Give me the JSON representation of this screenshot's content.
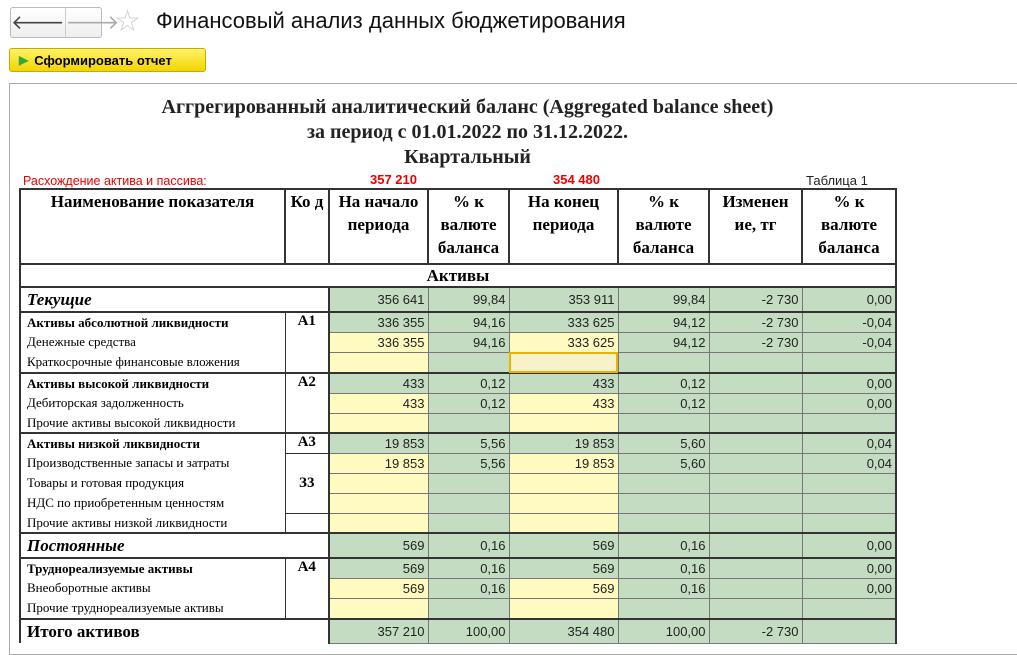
{
  "window": {
    "title": "Финансовый анализ данных бюджетирования",
    "back_icon": "arrow-left-icon",
    "forward_icon": "arrow-right-icon",
    "favorite_icon": "star-icon"
  },
  "toolbar": {
    "run_label": "Сформировать отчет"
  },
  "report": {
    "title1": "Аггрегированный аналитический баланс (Aggregated balance sheet)",
    "title2": "за период с 01.01.2022 по 31.12.2022.",
    "title3": "Квартальный",
    "discrepancy_label": "Расхождение актива и пассива:",
    "discrepancy_start": "357 210",
    "discrepancy_end": "354 480",
    "table_label": "Таблица 1",
    "headers": [
      "Наименование показателя",
      "Ко д",
      "На начало периода",
      "% к валюте баланса",
      "На конец периода",
      "% к валюте баланса",
      "Изменен ие, тг",
      "% к валюте баланса"
    ],
    "section_assets": "Активы",
    "rows": [
      {
        "type": "sec",
        "name": "Текущие",
        "code": "",
        "v": [
          "356 641",
          "99,84",
          "353 911",
          "99,84",
          "-2 730",
          "0,00"
        ]
      },
      {
        "type": "grp",
        "name": "Активы абсолютной ликвидности",
        "code": "А1",
        "v": [
          "336 355",
          "94,16",
          "333 625",
          "94,12",
          "-2 730",
          "-0,04"
        ]
      },
      {
        "type": "item",
        "name": "Денежные средства",
        "code": "",
        "v": [
          "336 355",
          "94,16",
          "333 625",
          "94,12",
          "-2 730",
          "-0,04"
        ]
      },
      {
        "type": "item",
        "name": "Краткосрочные финансовые вложения",
        "code": "",
        "v": [
          "",
          "",
          "",
          "",
          "",
          ""
        ]
      },
      {
        "type": "grp",
        "name": "Активы высокой ликвидности",
        "code": "А2",
        "v": [
          "433",
          "0,12",
          "433",
          "0,12",
          "",
          "0,00"
        ]
      },
      {
        "type": "item",
        "name": "Дебиторская задолженность",
        "code": "",
        "v": [
          "433",
          "0,12",
          "433",
          "0,12",
          "",
          "0,00"
        ]
      },
      {
        "type": "item",
        "name": "Прочие активы высокой ликвидности",
        "code": "",
        "v": [
          "",
          "",
          "",
          "",
          "",
          ""
        ]
      },
      {
        "type": "grp",
        "name": "Активы низкой ликвидности",
        "code": "А3",
        "v": [
          "19 853",
          "5,56",
          "19 853",
          "5,60",
          "",
          "0,04"
        ]
      },
      {
        "type": "item",
        "name": "Производственные запасы и затраты",
        "code": "З3",
        "v": [
          "19 853",
          "5,56",
          "19 853",
          "5,60",
          "",
          "0,04"
        ]
      },
      {
        "type": "item",
        "name": "Товары и готовая продукция",
        "code": "",
        "v": [
          "",
          "",
          "",
          "",
          "",
          ""
        ]
      },
      {
        "type": "item",
        "name": "НДС по приобретенным ценностям",
        "code": "",
        "v": [
          "",
          "",
          "",
          "",
          "",
          ""
        ]
      },
      {
        "type": "item",
        "name": "Прочие активы низкой ликвидности",
        "code": "",
        "v": [
          "",
          "",
          "",
          "",
          "",
          ""
        ]
      },
      {
        "type": "sec",
        "name": "Постоянные",
        "code": "",
        "v": [
          "569",
          "0,16",
          "569",
          "0,16",
          "",
          "0,00"
        ]
      },
      {
        "type": "grp",
        "name": "Труднореализуемые активы",
        "code": "А4",
        "v": [
          "569",
          "0,16",
          "569",
          "0,16",
          "",
          "0,00"
        ]
      },
      {
        "type": "item",
        "name": "Внеоборотные активы",
        "code": "",
        "v": [
          "569",
          "0,16",
          "569",
          "0,16",
          "",
          "0,00"
        ]
      },
      {
        "type": "item",
        "name": "Прочие труднореализуемые активы",
        "code": "",
        "v": [
          "",
          "",
          "",
          "",
          "",
          ""
        ]
      },
      {
        "type": "tot",
        "name": "Итого активов",
        "code": "",
        "v": [
          "357 210",
          "100,00",
          "354 480",
          "100,00",
          "-2 730",
          ""
        ]
      }
    ]
  },
  "colors": {
    "computed": "#c3dcc2",
    "input": "#fffbc0",
    "warning": "#ee0000",
    "selection": "#f0b000"
  }
}
